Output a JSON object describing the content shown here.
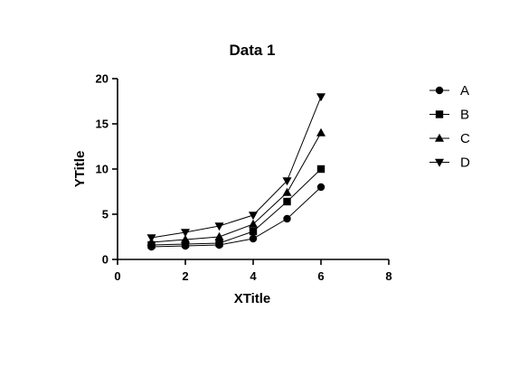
{
  "chart_data": {
    "type": "line",
    "title": "Data 1",
    "xlabel": "XTitle",
    "ylabel": "YTitle",
    "xlim": [
      0,
      8
    ],
    "ylim": [
      0,
      20
    ],
    "xticks": [
      0,
      2,
      4,
      6,
      8
    ],
    "yticks": [
      0,
      5,
      10,
      15,
      20
    ],
    "grid": false,
    "legend_position": "right",
    "x": [
      1,
      2,
      3,
      4,
      5,
      6
    ],
    "series": [
      {
        "name": "A",
        "marker": "circle",
        "values": [
          1.4,
          1.5,
          1.6,
          2.3,
          4.5,
          8
        ]
      },
      {
        "name": "B",
        "marker": "square",
        "values": [
          1.6,
          1.7,
          1.8,
          3.1,
          6.4,
          10
        ]
      },
      {
        "name": "C",
        "marker": "triangle-up",
        "values": [
          1.9,
          2.2,
          2.5,
          3.9,
          7.4,
          14
        ]
      },
      {
        "name": "D",
        "marker": "triangle-down",
        "values": [
          2.4,
          3.0,
          3.7,
          4.9,
          8.7,
          18
        ]
      }
    ],
    "colors": {
      "line": "#000000",
      "marker": "#000000"
    }
  }
}
